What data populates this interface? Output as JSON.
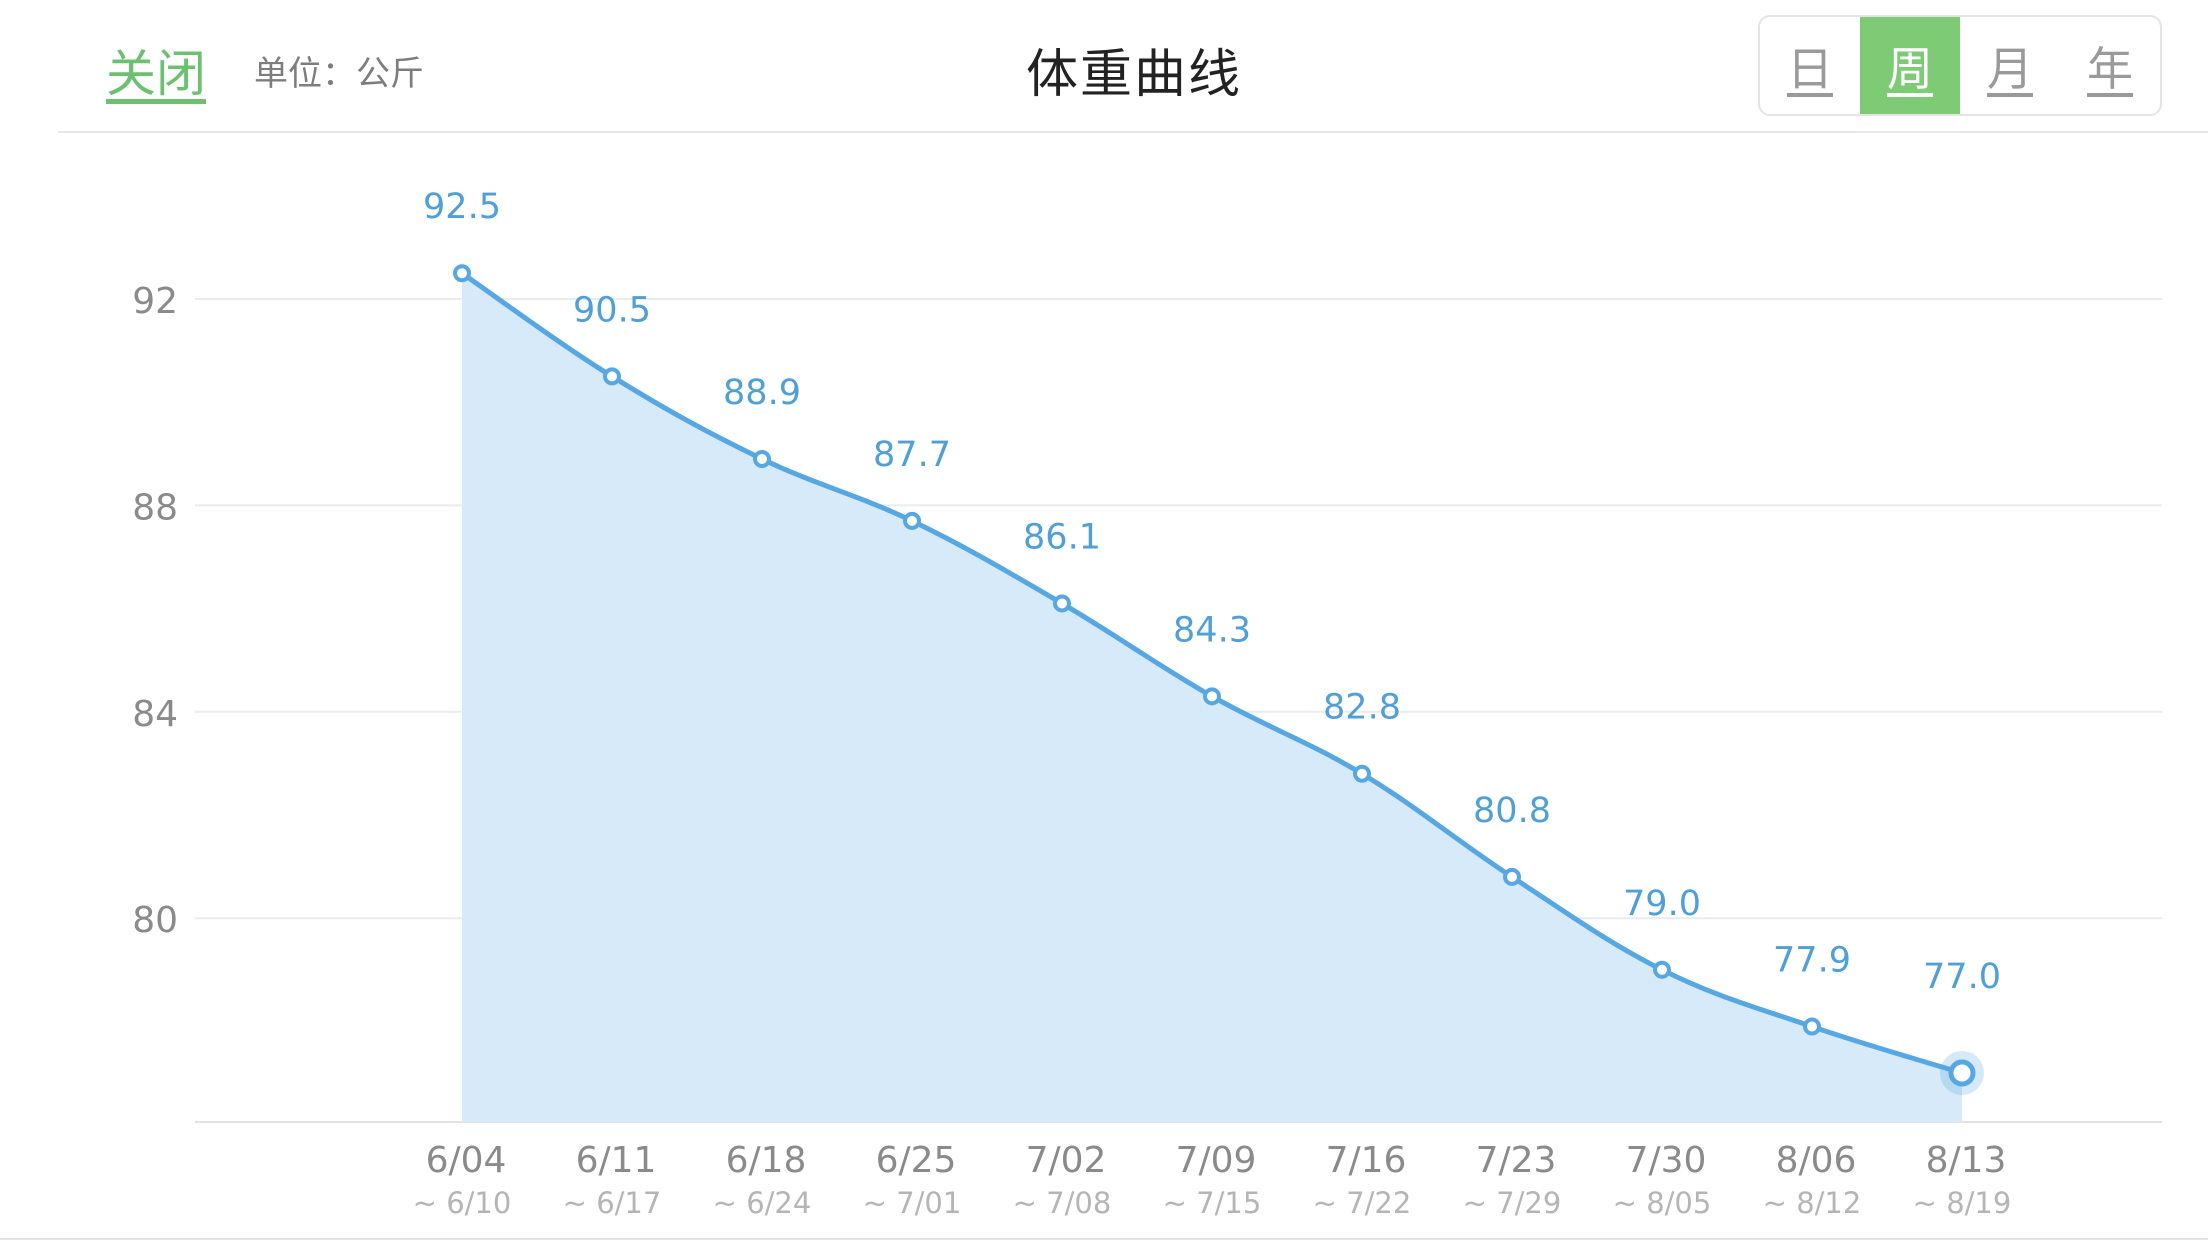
{
  "header": {
    "close_label": "关闭",
    "unit_label": "单位：公斤",
    "title": "体重曲线",
    "periods": [
      "日",
      "周",
      "月",
      "年"
    ],
    "active_period": "周"
  },
  "colors": {
    "accent_green": "#7dcb75",
    "close_green": "#6cc070",
    "line_blue": "#56a7e2",
    "fill_blue": "#d6eaf9",
    "label_blue": "#4f9fd8"
  },
  "chart_data": {
    "type": "area",
    "title": "体重曲线",
    "categories": [
      "6/04",
      "6/11",
      "6/18",
      "6/25",
      "7/02",
      "7/09",
      "7/16",
      "7/23",
      "7/30",
      "8/06",
      "8/13"
    ],
    "range_end_labels": [
      "~ 6/10",
      "~ 6/17",
      "~ 6/24",
      "~ 7/01",
      "~ 7/08",
      "~ 7/15",
      "~ 7/22",
      "~ 7/29",
      "~ 8/05",
      "~ 8/12",
      "~ 8/19"
    ],
    "values": [
      92.5,
      90.5,
      88.9,
      87.7,
      86.1,
      84.3,
      82.8,
      80.8,
      79.0,
      77.9,
      77.0
    ],
    "value_labels": [
      "92.5",
      "90.5",
      "88.9",
      "87.7",
      "86.1",
      "84.3",
      "82.8",
      "80.8",
      "79.0",
      "77.9",
      "77.0"
    ],
    "y_ticks": [
      80,
      84,
      88,
      92
    ],
    "ylim": [
      76,
      94
    ],
    "grid": true,
    "highlight_last": true
  }
}
